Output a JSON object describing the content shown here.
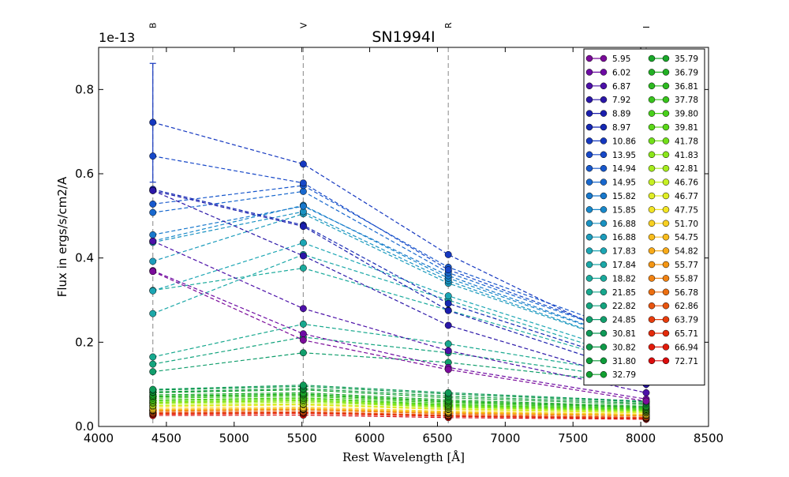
{
  "chart_data": {
    "type": "line",
    "title": "SN1994I",
    "xlabel": "Rest Wavelength [Å]",
    "ylabel": "Flux in ergs/s/cm2/A",
    "y_offset_text": "1e-13",
    "xlim": [
      4000,
      8500
    ],
    "ylim": [
      0.0,
      0.9
    ],
    "y_scale_factor": 1e-13,
    "x_ticks": [
      4000,
      4500,
      5000,
      5500,
      6000,
      6500,
      7000,
      7500,
      8000,
      8500
    ],
    "x_tick_labels": [
      "4000",
      "4500",
      "5000",
      "5500",
      "6000",
      "6500",
      "7000",
      "7500",
      "8000",
      "8500"
    ],
    "y_ticks": [
      0.0,
      0.2,
      0.4,
      0.6,
      0.8
    ],
    "y_tick_labels": [
      "0.0",
      "0.2",
      "0.4",
      "0.6",
      "0.8"
    ],
    "grid": false,
    "legend_position": "top-right",
    "bands": [
      {
        "name": "B",
        "wavelength": 4400
      },
      {
        "name": "V",
        "wavelength": 5510
      },
      {
        "name": "R",
        "wavelength": 6580
      },
      {
        "name": "I",
        "wavelength": 8040
      }
    ],
    "x": [
      4400,
      5510,
      6580,
      8040
    ],
    "series": [
      {
        "name": "5.95",
        "color": "#7b0b9a",
        "values": [
          0.368,
          0.205,
          0.135,
          0.06
        ]
      },
      {
        "name": "6.02",
        "color": "#6d0ba3",
        "values": [
          0.37,
          0.22,
          0.14,
          0.065
        ]
      },
      {
        "name": "6.87",
        "color": "#4c10a8",
        "values": [
          0.44,
          0.28,
          0.18,
          0.08
        ]
      },
      {
        "name": "7.92",
        "color": "#2b17a8",
        "values": [
          0.56,
          0.405,
          0.24,
          0.1
        ]
      },
      {
        "name": "8.89",
        "color": "#1a1eae",
        "values": [
          0.56,
          0.475,
          0.275,
          0.12
        ]
      },
      {
        "name": "8.97",
        "color": "#1528b3",
        "values": [
          0.563,
          0.478,
          0.292,
          0.14
        ]
      },
      {
        "name": "10.86",
        "color": "#1538c0",
        "values": [
          0.722,
          0.623,
          0.408,
          0.18
        ]
      },
      {
        "name": "13.95",
        "color": "#1748c8",
        "values": [
          0.642,
          0.578,
          0.372,
          0.2
        ]
      },
      {
        "name": "14.94",
        "color": "#1858cc",
        "values": [
          0.528,
          0.572,
          0.378,
          0.21
        ]
      },
      {
        "name": "14.95",
        "color": "#1868ce",
        "values": [
          0.508,
          0.558,
          0.365,
          0.2
        ]
      },
      {
        "name": "15.82",
        "color": "#1878cc",
        "values": [
          0.455,
          0.523,
          0.358,
          0.19
        ]
      },
      {
        "name": "15.85",
        "color": "#1888ca",
        "values": [
          0.44,
          0.525,
          0.352,
          0.19
        ]
      },
      {
        "name": "16.88",
        "color": "#1a92c2",
        "values": [
          0.437,
          0.51,
          0.346,
          0.18
        ]
      },
      {
        "name": "16.88",
        "color": "#1c9cbc",
        "values": [
          0.392,
          0.505,
          0.34,
          0.18
        ]
      },
      {
        "name": "17.83",
        "color": "#1ca6b4",
        "values": [
          0.322,
          0.436,
          0.31,
          0.16
        ]
      },
      {
        "name": "17.84",
        "color": "#1ca8a8",
        "values": [
          0.268,
          0.408,
          0.3,
          0.15
        ]
      },
      {
        "name": "18.82",
        "color": "#1aaa9c",
        "values": [
          0.323,
          0.376,
          0.276,
          0.14
        ]
      },
      {
        "name": "21.85",
        "color": "#17a88e",
        "values": [
          0.165,
          0.243,
          0.196,
          0.12
        ]
      },
      {
        "name": "22.82",
        "color": "#14a47e",
        "values": [
          0.148,
          0.212,
          0.175,
          0.11
        ]
      },
      {
        "name": "24.85",
        "color": "#119e6c",
        "values": [
          0.13,
          0.175,
          0.152,
          0.1
        ]
      },
      {
        "name": "30.81",
        "color": "#0f9a58",
        "values": [
          0.088,
          0.098,
          0.08,
          0.06
        ]
      },
      {
        "name": "30.82",
        "color": "#0e9a48",
        "values": [
          0.086,
          0.095,
          0.077,
          0.058
        ]
      },
      {
        "name": "31.80",
        "color": "#0e9c3a",
        "values": [
          0.082,
          0.09,
          0.072,
          0.055
        ]
      },
      {
        "name": "32.79",
        "color": "#12a030",
        "values": [
          0.08,
          0.087,
          0.068,
          0.052
        ]
      },
      {
        "name": "35.79",
        "color": "#1aa82a",
        "values": [
          0.075,
          0.08,
          0.063,
          0.048
        ]
      },
      {
        "name": "36.79",
        "color": "#22b024",
        "values": [
          0.072,
          0.077,
          0.06,
          0.046
        ]
      },
      {
        "name": "36.81",
        "color": "#2cba20",
        "values": [
          0.07,
          0.075,
          0.058,
          0.045
        ]
      },
      {
        "name": "37.78",
        "color": "#38c41c",
        "values": [
          0.067,
          0.072,
          0.055,
          0.043
        ]
      },
      {
        "name": "39.80",
        "color": "#48d01a",
        "values": [
          0.063,
          0.068,
          0.052,
          0.041
        ]
      },
      {
        "name": "39.81",
        "color": "#5ad818",
        "values": [
          0.061,
          0.066,
          0.05,
          0.04
        ]
      },
      {
        "name": "41.78",
        "color": "#72e018",
        "values": [
          0.058,
          0.063,
          0.048,
          0.038
        ]
      },
      {
        "name": "41.83",
        "color": "#8ae61a",
        "values": [
          0.056,
          0.061,
          0.046,
          0.037
        ]
      },
      {
        "name": "42.81",
        "color": "#a6ec1e",
        "values": [
          0.054,
          0.058,
          0.045,
          0.036
        ]
      },
      {
        "name": "46.76",
        "color": "#c6f022",
        "values": [
          0.05,
          0.054,
          0.042,
          0.034
        ]
      },
      {
        "name": "46.77",
        "color": "#e0ee24",
        "values": [
          0.049,
          0.053,
          0.041,
          0.033
        ]
      },
      {
        "name": "47.75",
        "color": "#f2e424",
        "values": [
          0.047,
          0.051,
          0.04,
          0.032
        ]
      },
      {
        "name": "51.70",
        "color": "#f8d020",
        "values": [
          0.043,
          0.046,
          0.036,
          0.029
        ]
      },
      {
        "name": "54.75",
        "color": "#f8bc1c",
        "values": [
          0.04,
          0.043,
          0.034,
          0.027
        ]
      },
      {
        "name": "54.82",
        "color": "#f8aa18",
        "values": [
          0.039,
          0.042,
          0.033,
          0.027
        ]
      },
      {
        "name": "55.77",
        "color": "#f49614",
        "values": [
          0.038,
          0.041,
          0.032,
          0.026
        ]
      },
      {
        "name": "55.87",
        "color": "#f08212",
        "values": [
          0.037,
          0.04,
          0.031,
          0.026
        ]
      },
      {
        "name": "56.78",
        "color": "#ec6e10",
        "values": [
          0.036,
          0.039,
          0.03,
          0.025
        ]
      },
      {
        "name": "62.86",
        "color": "#e8540e",
        "values": [
          0.033,
          0.035,
          0.027,
          0.022
        ]
      },
      {
        "name": "63.79",
        "color": "#e63c0c",
        "values": [
          0.032,
          0.034,
          0.026,
          0.021
        ]
      },
      {
        "name": "65.71",
        "color": "#e42a0a",
        "values": [
          0.03,
          0.032,
          0.025,
          0.02
        ]
      },
      {
        "name": "66.94",
        "color": "#e21a0a",
        "values": [
          0.029,
          0.031,
          0.024,
          0.019
        ]
      },
      {
        "name": "72.71",
        "color": "#dc0c0c",
        "values": [
          0.026,
          0.027,
          0.021,
          0.017
        ]
      }
    ],
    "error_bars": [
      {
        "series": "10.86",
        "band": "B",
        "value": 0.722,
        "low": 0.58,
        "high": 0.862
      }
    ]
  }
}
